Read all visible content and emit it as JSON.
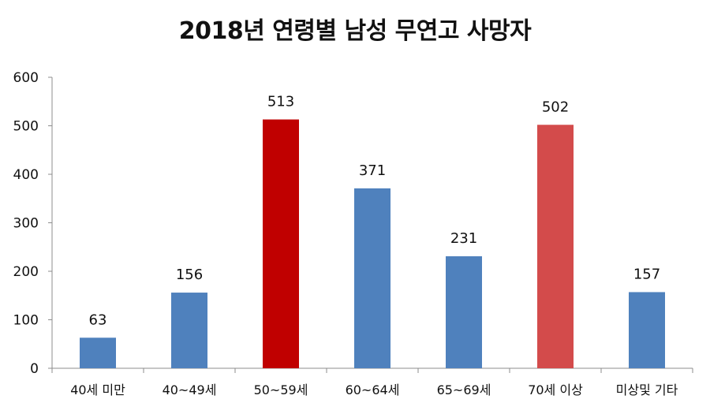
{
  "chart_data": {
    "type": "bar",
    "title": "2018년 연령별 남성 무연고 사망자",
    "xlabel": "",
    "ylabel": "",
    "categories": [
      "40세 미만",
      "40~49세",
      "50~59세",
      "60~64세",
      "65~69세",
      "70세 이상",
      "미상및 기타"
    ],
    "values": [
      63,
      156,
      513,
      371,
      231,
      502,
      157
    ],
    "data_labels": [
      "63",
      "156",
      "513",
      "371",
      "231",
      "502",
      "157"
    ],
    "bar_colors": [
      "#4f81bd",
      "#4f81bd",
      "#c00000",
      "#4f81bd",
      "#4f81bd",
      "#d34b4b",
      "#4f81bd"
    ],
    "ylim": [
      0,
      600
    ],
    "yticks": [
      0,
      100,
      200,
      300,
      400,
      500,
      600
    ],
    "ytick_labels": [
      "0",
      "100",
      "200",
      "300",
      "400",
      "500",
      "600"
    ],
    "grid": false,
    "legend": "none"
  }
}
